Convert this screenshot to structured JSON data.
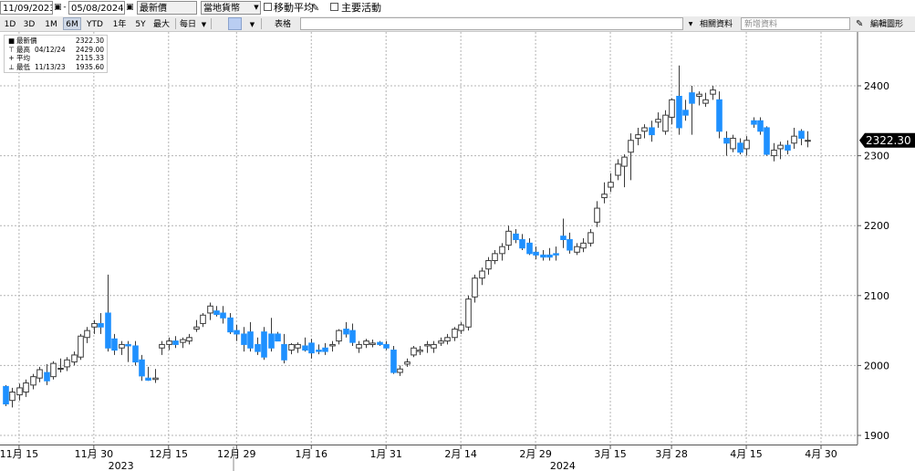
{
  "toolbar": {
    "start_date": "11/09/2023",
    "date_separator": "-",
    "end_date": "05/08/2024",
    "price_type": "最新價",
    "currency": "當地貨幣",
    "moving_avg_label": "移動平均",
    "corp_events_label": "主要活動",
    "range_buttons": [
      "1D",
      "3D",
      "1M",
      "6M",
      "YTD",
      "1年",
      "5Y",
      "最大"
    ],
    "period": "每日",
    "table_button": "表格",
    "related_data": "相關資料",
    "new_data_placeholder": "新增資料",
    "edit_chart": "編輯圖形"
  },
  "legend": {
    "last": {
      "name": "最新價",
      "value": "2322.30"
    },
    "high": {
      "name": "最高",
      "date": "04/12/24",
      "value": "2429.00"
    },
    "avg": {
      "name": "平均",
      "value": "2115.33"
    },
    "low": {
      "name": "最低",
      "date": "11/13/23",
      "value": "1935.60"
    }
  },
  "last_price_tag": "2322.30",
  "chart_data": {
    "type": "candlestick",
    "ylim": [
      1880,
      2470
    ],
    "y_ticks": [
      1900,
      2000,
      2100,
      2200,
      2300,
      2400
    ],
    "y_tick_labels": [
      "1900",
      "2000",
      "2100",
      "2200",
      "2300",
      "2400"
    ],
    "x_ticks": [
      {
        "label": "11月 15",
        "index": 2
      },
      {
        "label": "11月 30",
        "index": 13
      },
      {
        "label": "12月 15",
        "index": 24
      },
      {
        "label": "12月 29",
        "index": 34
      },
      {
        "label": "1月 16",
        "index": 45
      },
      {
        "label": "1月 31",
        "index": 56
      },
      {
        "label": "2月 14",
        "index": 67
      },
      {
        "label": "2月 29",
        "index": 78
      },
      {
        "label": "3月 15",
        "index": 89
      },
      {
        "label": "3月 28",
        "index": 98
      },
      {
        "label": "4月 15",
        "index": 109
      },
      {
        "label": "4月 30",
        "index": 120
      }
    ],
    "year_labels": [
      {
        "label": "2023",
        "index": 17
      },
      {
        "label": "2024",
        "index": 82
      }
    ],
    "candles": [
      [
        1970,
        1972,
        1942,
        1945
      ],
      [
        1950,
        1968,
        1940,
        1962
      ],
      [
        1958,
        1974,
        1950,
        1968
      ],
      [
        1962,
        1980,
        1955,
        1975
      ],
      [
        1972,
        1988,
        1966,
        1984
      ],
      [
        1982,
        1998,
        1976,
        1994
      ],
      [
        1990,
        2002,
        1972,
        1978
      ],
      [
        1984,
        2006,
        1980,
        2003
      ],
      [
        1995,
        2010,
        1990,
        1996
      ],
      [
        1998,
        2012,
        1992,
        2008
      ],
      [
        2005,
        2020,
        2000,
        2015
      ],
      [
        2012,
        2045,
        2008,
        2042
      ],
      [
        2040,
        2055,
        2032,
        2050
      ],
      [
        2055,
        2065,
        2045,
        2060
      ],
      [
        2060,
        2075,
        2045,
        2055
      ],
      [
        2075,
        2130,
        2020,
        2025
      ],
      [
        2038,
        2045,
        2015,
        2022
      ],
      [
        2025,
        2035,
        2015,
        2030
      ],
      [
        2030,
        2035,
        2005,
        2028
      ],
      [
        2028,
        2035,
        2000,
        2005
      ],
      [
        2008,
        2015,
        1978,
        1985
      ],
      [
        1982,
        1998,
        1978,
        1979
      ],
      [
        1980,
        1995,
        1975,
        1982
      ],
      [
        2025,
        2035,
        2015,
        2030
      ],
      [
        2030,
        2040,
        2022,
        2035
      ],
      [
        2035,
        2042,
        2025,
        2030
      ],
      [
        2033,
        2040,
        2025,
        2037
      ],
      [
        2035,
        2045,
        2030,
        2040
      ],
      [
        2052,
        2065,
        2048,
        2055
      ],
      [
        2060,
        2075,
        2055,
        2072
      ],
      [
        2075,
        2090,
        2065,
        2085
      ],
      [
        2078,
        2085,
        2070,
        2073
      ],
      [
        2075,
        2085,
        2060,
        2068
      ],
      [
        2068,
        2075,
        2045,
        2048
      ],
      [
        2050,
        2058,
        2035,
        2045
      ],
      [
        2045,
        2055,
        2020,
        2030
      ],
      [
        2048,
        2062,
        2020,
        2025
      ],
      [
        2030,
        2040,
        2015,
        2020
      ],
      [
        2048,
        2055,
        2008,
        2012
      ],
      [
        2045,
        2068,
        2020,
        2025
      ],
      [
        2045,
        2048,
        2035,
        2035
      ],
      [
        2030,
        2045,
        2003,
        2008
      ],
      [
        2022,
        2032,
        2016,
        2030
      ],
      [
        2025,
        2033,
        2018,
        2030
      ],
      [
        2028,
        2040,
        2020,
        2022
      ],
      [
        2032,
        2038,
        2010,
        2018
      ],
      [
        2022,
        2030,
        2016,
        2020
      ],
      [
        2025,
        2032,
        2015,
        2020
      ],
      [
        2028,
        2035,
        2020,
        2030
      ],
      [
        2035,
        2052,
        2030,
        2050
      ],
      [
        2052,
        2062,
        2040,
        2045
      ],
      [
        2050,
        2060,
        2028,
        2033
      ],
      [
        2025,
        2035,
        2018,
        2030
      ],
      [
        2030,
        2038,
        2025,
        2035
      ],
      [
        2030,
        2037,
        2026,
        2032
      ],
      [
        2033,
        2035,
        2028,
        2030
      ],
      [
        2030,
        2035,
        2022,
        2025
      ],
      [
        2022,
        2028,
        1988,
        1990
      ],
      [
        1990,
        2000,
        1985,
        1995
      ],
      [
        2002,
        2010,
        1998,
        2005
      ],
      [
        2015,
        2028,
        2012,
        2025
      ],
      [
        2020,
        2028,
        2015,
        2022
      ],
      [
        2028,
        2035,
        2018,
        2030
      ],
      [
        2025,
        2035,
        2018,
        2030
      ],
      [
        2032,
        2040,
        2028,
        2035
      ],
      [
        2035,
        2045,
        2030,
        2040
      ],
      [
        2040,
        2055,
        2035,
        2052
      ],
      [
        2050,
        2062,
        2045,
        2058
      ],
      [
        2055,
        2100,
        2050,
        2095
      ],
      [
        2098,
        2130,
        2090,
        2125
      ],
      [
        2125,
        2140,
        2115,
        2135
      ],
      [
        2138,
        2155,
        2130,
        2150
      ],
      [
        2150,
        2165,
        2145,
        2160
      ],
      [
        2160,
        2175,
        2150,
        2170
      ],
      [
        2172,
        2200,
        2165,
        2192
      ],
      [
        2188,
        2195,
        2175,
        2180
      ],
      [
        2180,
        2188,
        2165,
        2168
      ],
      [
        2175,
        2182,
        2158,
        2160
      ],
      [
        2162,
        2170,
        2152,
        2158
      ],
      [
        2158,
        2165,
        2150,
        2155
      ],
      [
        2158,
        2168,
        2150,
        2155
      ],
      [
        2160,
        2170,
        2150,
        2158
      ],
      [
        2185,
        2210,
        2168,
        2180
      ],
      [
        2180,
        2190,
        2160,
        2165
      ],
      [
        2162,
        2175,
        2158,
        2170
      ],
      [
        2168,
        2182,
        2162,
        2175
      ],
      [
        2175,
        2195,
        2170,
        2190
      ],
      [
        2205,
        2235,
        2198,
        2225
      ],
      [
        2240,
        2262,
        2232,
        2245
      ],
      [
        2255,
        2275,
        2248,
        2262
      ],
      [
        2272,
        2295,
        2265,
        2288
      ],
      [
        2285,
        2302,
        2255,
        2298
      ],
      [
        2305,
        2332,
        2265,
        2322
      ],
      [
        2325,
        2340,
        2315,
        2330
      ],
      [
        2335,
        2345,
        2325,
        2340
      ],
      [
        2340,
        2350,
        2320,
        2330
      ],
      [
        2348,
        2362,
        2340,
        2352
      ],
      [
        2335,
        2365,
        2330,
        2358
      ],
      [
        2355,
        2382,
        2345,
        2380
      ],
      [
        2385,
        2429,
        2330,
        2340
      ],
      [
        2365,
        2380,
        2350,
        2358
      ],
      [
        2390,
        2400,
        2330,
        2375
      ],
      [
        2385,
        2392,
        2372,
        2388
      ],
      [
        2375,
        2390,
        2370,
        2380
      ],
      [
        2388,
        2400,
        2380,
        2394
      ],
      [
        2380,
        2392,
        2325,
        2335
      ],
      [
        2325,
        2335,
        2300,
        2318
      ],
      [
        2310,
        2330,
        2305,
        2325
      ],
      [
        2318,
        2325,
        2302,
        2305
      ],
      [
        2310,
        2328,
        2300,
        2322
      ],
      [
        2350,
        2355,
        2340,
        2345
      ],
      [
        2350,
        2355,
        2330,
        2335
      ],
      [
        2340,
        2342,
        2300,
        2302
      ],
      [
        2300,
        2318,
        2292,
        2308
      ],
      [
        2310,
        2320,
        2295,
        2315
      ],
      [
        2315,
        2322,
        2302,
        2308
      ],
      [
        2318,
        2340,
        2310,
        2328
      ],
      [
        2335,
        2338,
        2315,
        2325
      ],
      [
        2322,
        2335,
        2312,
        2322
      ]
    ]
  }
}
